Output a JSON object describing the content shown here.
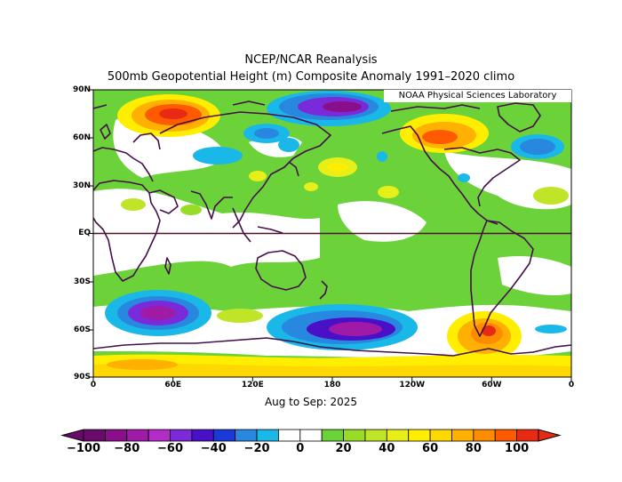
{
  "title": "NCEP/NCAR Reanalysis",
  "subtitle": "500mb Geopotential Height (m) Composite Anomaly 1991–2020 climo",
  "credit": "NOAA Physical Sciences Laboratory",
  "date_range": "Aug to Sep: 2025",
  "lat_labels": [
    "90N",
    "60N",
    "30N",
    "EQ",
    "30S",
    "60S",
    "90S"
  ],
  "lon_labels": [
    "0",
    "60E",
    "120E",
    "180",
    "120W",
    "60W",
    "0"
  ],
  "colorbar": {
    "tick_labels": [
      "−100",
      "−80",
      "−60",
      "−40",
      "−20",
      "0",
      "20",
      "40",
      "60",
      "80",
      "100"
    ],
    "colors": [
      "#6a0a6a",
      "#8a0e8a",
      "#a01aa8",
      "#b42cc8",
      "#7a2ad8",
      "#4a10c8",
      "#1a3ad8",
      "#2888e0",
      "#1ab8e8",
      "#ffffff",
      "#ffffff",
      "#6cd23a",
      "#98dc28",
      "#c0e428",
      "#e8ee18",
      "#ffee00",
      "#ffd800",
      "#ffb000",
      "#ff8c00",
      "#ff5a00",
      "#e82a14"
    ]
  },
  "map_colors": {
    "background": "#6cd23a",
    "coast": "#44104a",
    "equator": "#50102a"
  }
}
